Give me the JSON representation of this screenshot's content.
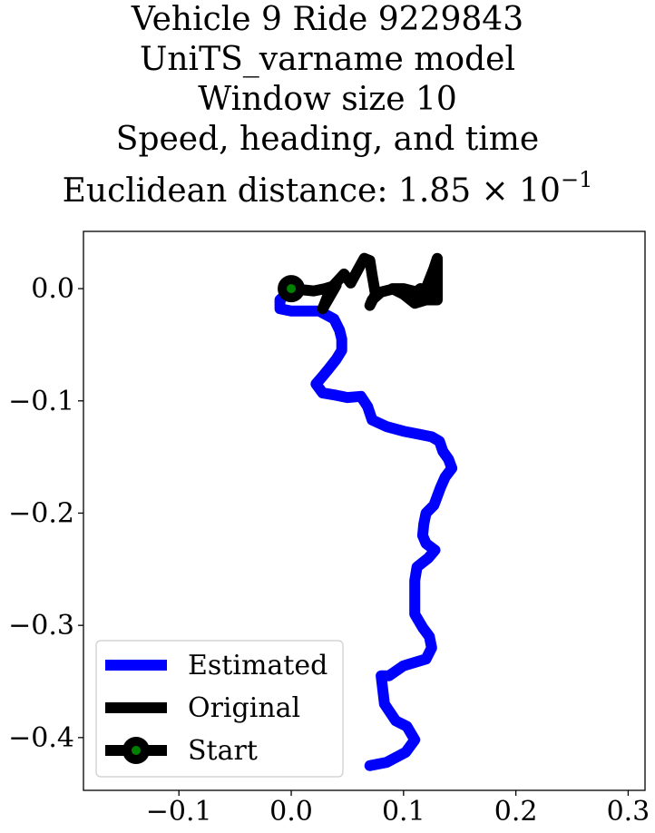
{
  "title_lines": [
    "Vehicle 9 Ride 9229843",
    "UniTS_varname model",
    "Window size 10",
    "Speed, heading, and time"
  ],
  "distance_prefix": "Euclidean distance: ",
  "distance_mantissa": "1.85 × 10",
  "distance_exponent": "−1",
  "chart_data": {
    "type": "line",
    "xlim": [
      -0.185,
      0.315
    ],
    "ylim": [
      -0.447,
      0.051
    ],
    "x_ticks": [
      -0.1,
      0.0,
      0.1,
      0.2,
      0.3
    ],
    "x_tick_labels": [
      "−0.1",
      "0.0",
      "0.1",
      "0.2",
      "0.3"
    ],
    "y_ticks": [
      0.0,
      -0.1,
      -0.2,
      -0.3,
      -0.4
    ],
    "y_tick_labels": [
      "0.0",
      "−0.1",
      "−0.2",
      "−0.3",
      "−0.4"
    ],
    "grid": false,
    "legend": {
      "placement": "lower-left",
      "entries": [
        "Estimated",
        "Original",
        "Start"
      ]
    },
    "series": [
      {
        "name": "Estimated",
        "color": "#0000ff",
        "points": [
          [
            0.0,
            0.0
          ],
          [
            -0.01,
            -0.01
          ],
          [
            -0.01,
            -0.018
          ],
          [
            0.0,
            -0.02
          ],
          [
            0.01,
            -0.02
          ],
          [
            0.025,
            -0.02
          ],
          [
            0.038,
            -0.027
          ],
          [
            0.043,
            -0.037
          ],
          [
            0.045,
            -0.045
          ],
          [
            0.045,
            -0.055
          ],
          [
            0.04,
            -0.063
          ],
          [
            0.033,
            -0.072
          ],
          [
            0.028,
            -0.078
          ],
          [
            0.022,
            -0.085
          ],
          [
            0.028,
            -0.093
          ],
          [
            0.04,
            -0.095
          ],
          [
            0.05,
            -0.097
          ],
          [
            0.062,
            -0.096
          ],
          [
            0.068,
            -0.105
          ],
          [
            0.072,
            -0.117
          ],
          [
            0.085,
            -0.123
          ],
          [
            0.1,
            -0.127
          ],
          [
            0.115,
            -0.13
          ],
          [
            0.125,
            -0.132
          ],
          [
            0.132,
            -0.136
          ],
          [
            0.135,
            -0.145
          ],
          [
            0.14,
            -0.152
          ],
          [
            0.143,
            -0.16
          ],
          [
            0.137,
            -0.168
          ],
          [
            0.133,
            -0.177
          ],
          [
            0.13,
            -0.185
          ],
          [
            0.127,
            -0.193
          ],
          [
            0.12,
            -0.2
          ],
          [
            0.118,
            -0.21
          ],
          [
            0.117,
            -0.22
          ],
          [
            0.12,
            -0.227
          ],
          [
            0.128,
            -0.233
          ],
          [
            0.122,
            -0.24
          ],
          [
            0.112,
            -0.248
          ],
          [
            0.11,
            -0.26
          ],
          [
            0.11,
            -0.275
          ],
          [
            0.11,
            -0.29
          ],
          [
            0.117,
            -0.302
          ],
          [
            0.123,
            -0.31
          ],
          [
            0.125,
            -0.32
          ],
          [
            0.12,
            -0.33
          ],
          [
            0.11,
            -0.333
          ],
          [
            0.1,
            -0.336
          ],
          [
            0.087,
            -0.345
          ],
          [
            0.08,
            -0.345
          ],
          [
            0.083,
            -0.37
          ],
          [
            0.093,
            -0.385
          ],
          [
            0.103,
            -0.39
          ],
          [
            0.11,
            -0.402
          ],
          [
            0.102,
            -0.413
          ],
          [
            0.085,
            -0.422
          ],
          [
            0.07,
            -0.425
          ]
        ]
      },
      {
        "name": "Original",
        "color": "#000000",
        "points": [
          [
            0.0,
            0.0
          ],
          [
            0.02,
            -0.002
          ],
          [
            0.03,
            0.0
          ],
          [
            0.04,
            0.003
          ],
          [
            0.028,
            -0.018
          ],
          [
            0.035,
            0.0
          ],
          [
            0.047,
            0.013
          ],
          [
            0.053,
            0.005
          ],
          [
            0.06,
            0.018
          ],
          [
            0.065,
            0.027
          ],
          [
            0.07,
            0.025
          ],
          [
            0.072,
            0.012
          ],
          [
            0.075,
            -0.005
          ],
          [
            0.07,
            -0.015
          ],
          [
            0.072,
            -0.01
          ],
          [
            0.08,
            -0.003
          ],
          [
            0.092,
            0.0
          ],
          [
            0.1,
            -0.005
          ],
          [
            0.11,
            -0.013
          ],
          [
            0.12,
            -0.01
          ],
          [
            0.115,
            -0.004
          ],
          [
            0.13,
            0.0
          ],
          [
            0.125,
            -0.005
          ],
          [
            0.115,
            0.0
          ],
          [
            0.105,
            -0.008
          ],
          [
            0.115,
            -0.01
          ],
          [
            0.13,
            -0.01
          ],
          [
            0.13,
            0.027
          ],
          [
            0.127,
            0.018
          ],
          [
            0.12,
            0.0
          ],
          [
            0.1,
            -0.005
          ],
          [
            0.09,
            0.0
          ],
          [
            0.1,
            0.0
          ],
          [
            0.12,
            -0.005
          ],
          [
            0.13,
            -0.008
          ]
        ]
      },
      {
        "name": "Start",
        "color": "#000000",
        "marker_color": "#008000",
        "points": [
          [
            0.0,
            0.0
          ]
        ]
      }
    ]
  }
}
